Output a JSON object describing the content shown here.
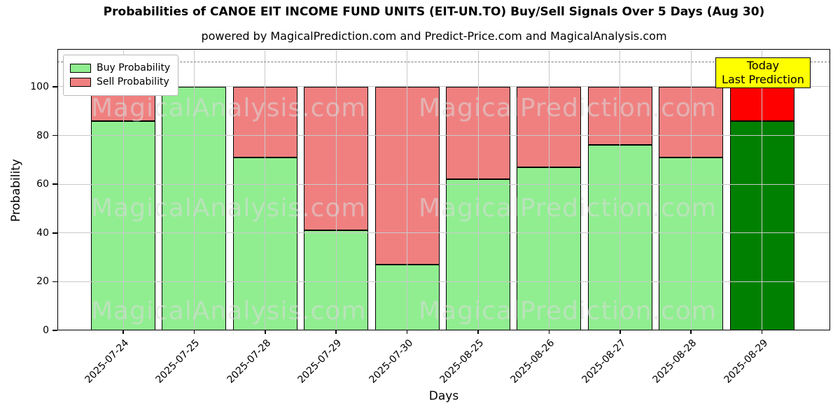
{
  "chart_data": {
    "type": "bar",
    "stacked": true,
    "title": "Probabilities of CANOE EIT INCOME FUND UNITS (EIT-UN.TO) Buy/Sell Signals Over 5 Days (Aug 30)",
    "subtitle": "powered by MagicalPrediction.com and Predict-Price.com and MagicalAnalysis.com",
    "xlabel": "Days",
    "ylabel": "Probability",
    "categories": [
      "2025-07-24",
      "2025-07-25",
      "2025-07-28",
      "2025-07-29",
      "2025-07-30",
      "2025-08-25",
      "2025-08-26",
      "2025-08-27",
      "2025-08-28",
      "2025-08-29"
    ],
    "series": [
      {
        "name": "Buy Probability",
        "color": "#90ee90",
        "values": [
          86,
          100,
          71,
          41,
          27,
          62,
          67,
          76,
          71,
          86
        ]
      },
      {
        "name": "Sell Probability",
        "color": "#f08080",
        "values": [
          14,
          0,
          29,
          59,
          73,
          38,
          33,
          24,
          29,
          14
        ]
      }
    ],
    "today_index": 9,
    "today_colors": {
      "buy": "#008000",
      "sell": "#ff0000"
    },
    "ylim": [
      0,
      115
    ],
    "yticks": [
      0,
      20,
      40,
      60,
      80,
      100
    ],
    "grid": true,
    "hline": {
      "y": 110,
      "style": "dashed",
      "color": "#7b7b7b"
    },
    "legend": {
      "position": "upper-left",
      "entries": [
        {
          "label": "Buy Probability",
          "color": "#90ee90"
        },
        {
          "label": "Sell Probability",
          "color": "#f08080"
        }
      ]
    },
    "annotation": {
      "lines": [
        "Today",
        "Last Prediction"
      ],
      "bg": "#ffff00",
      "border": "#000000"
    },
    "watermarks": [
      "MagicalAnalysis.com",
      "MagicalPrediction.com"
    ]
  }
}
